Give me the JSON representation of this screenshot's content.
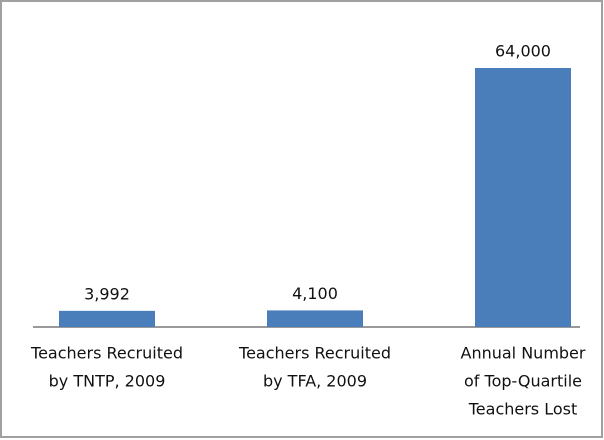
{
  "chart_data": {
    "type": "bar",
    "categories": [
      [
        "Teachers Recruited",
        "by TNTP, 2009"
      ],
      [
        "Teachers Recruited",
        "by TFA, 2009"
      ],
      [
        "Annual Number",
        "of Top-Quartile",
        "Teachers Lost"
      ]
    ],
    "values": [
      3992,
      4100,
      64000
    ],
    "value_labels": [
      "3,992",
      "4,100",
      "64,000"
    ],
    "color": "#4a7ebb",
    "ylim": [
      0,
      64000
    ]
  }
}
